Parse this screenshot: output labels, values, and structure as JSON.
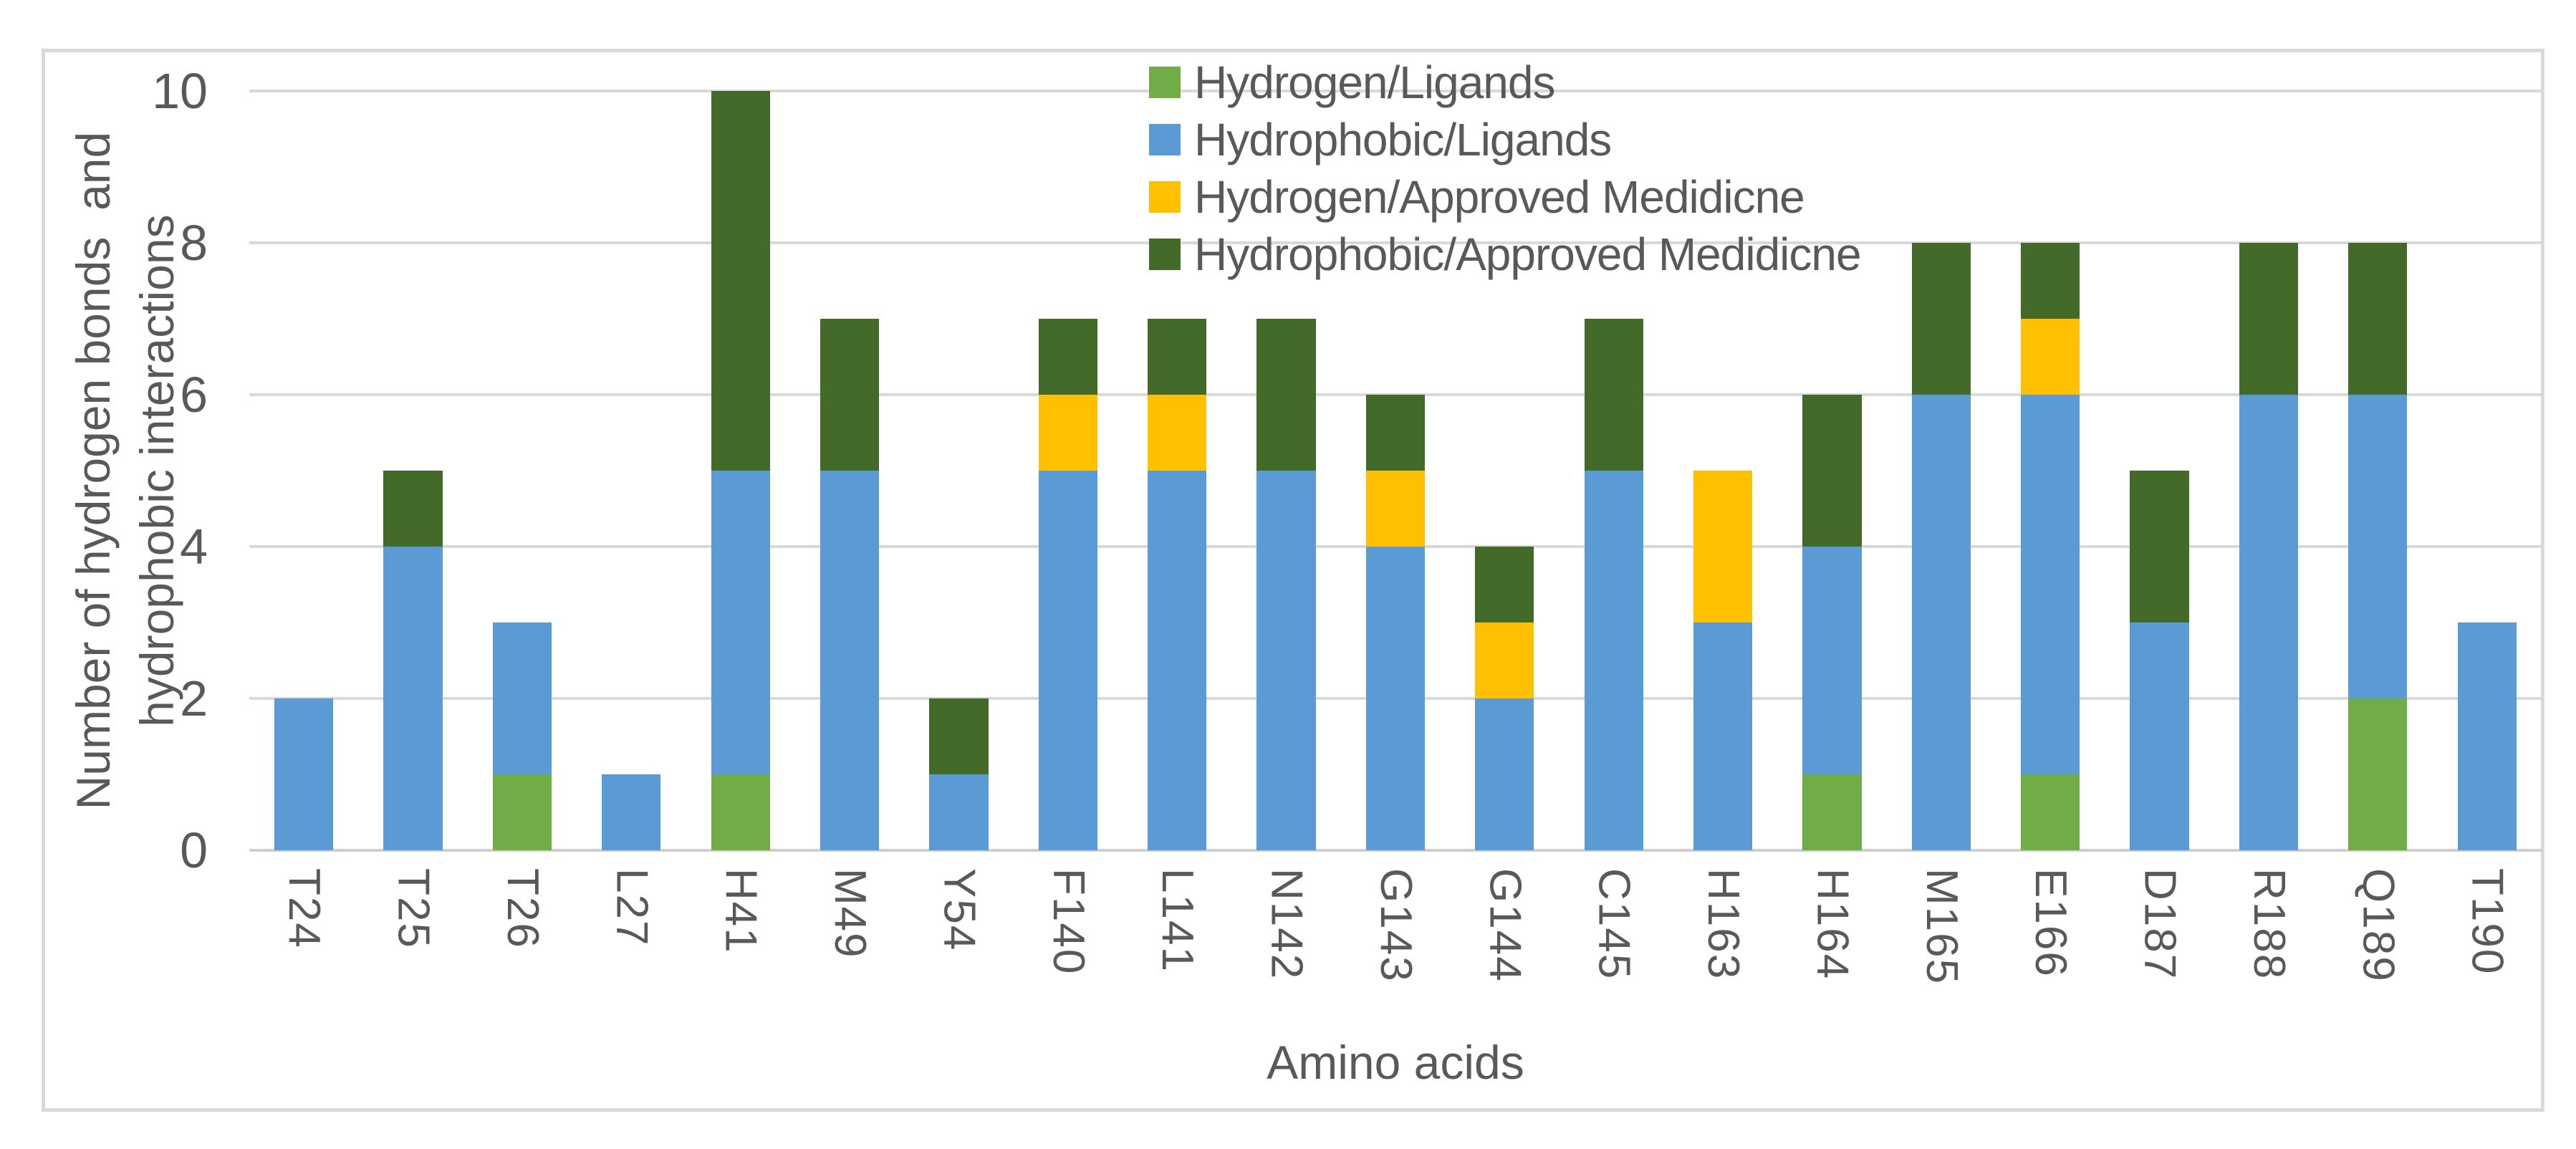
{
  "chart_data": {
    "type": "bar",
    "stacked": true,
    "title": "",
    "xlabel": "Amino acids",
    "ylabel_line1": "Number of hydrogen bonds  and",
    "ylabel_line2": "hydrophobic interactions",
    "ylim": [
      0,
      10
    ],
    "yticks": [
      0,
      2,
      4,
      6,
      8,
      10
    ],
    "grid": true,
    "legend_position": "top-center-overlay",
    "gridline_color": "#D9D9D9",
    "text_color": "#595959",
    "frame_color": "#D9D9D9",
    "categories": [
      "T24",
      "T25",
      "T26",
      "L27",
      "H41",
      "M49",
      "Y54",
      "F140",
      "L141",
      "N142",
      "G143",
      "G144",
      "C145",
      "H163",
      "H164",
      "M165",
      "E166",
      "D187",
      "R188",
      "Q189",
      "T190"
    ],
    "series": [
      {
        "name": "Hydrogen/Ligands",
        "color": "#70AD47",
        "values": [
          0,
          0,
          1,
          0,
          1,
          0,
          0,
          0,
          0,
          0,
          0,
          0,
          0,
          0,
          1,
          0,
          1,
          0,
          0,
          2,
          0
        ]
      },
      {
        "name": "Hydrophobic/Ligands",
        "color": "#5B9BD5",
        "values": [
          2,
          4,
          2,
          1,
          4,
          5,
          1,
          5,
          5,
          5,
          4,
          2,
          5,
          3,
          3,
          6,
          5,
          3,
          6,
          4,
          3
        ]
      },
      {
        "name": "Hydrogen/Approved Medidicne",
        "color": "#FFC000",
        "values": [
          0,
          0,
          0,
          0,
          0,
          0,
          0,
          1,
          1,
          0,
          1,
          1,
          0,
          2,
          0,
          0,
          1,
          0,
          0,
          0,
          0
        ]
      },
      {
        "name": "Hydrophobic/Approved Medidicne",
        "color": "#446A2A",
        "values": [
          0,
          1,
          0,
          0,
          5,
          2,
          1,
          1,
          1,
          2,
          1,
          1,
          2,
          0,
          2,
          2,
          1,
          2,
          2,
          2,
          0
        ]
      }
    ],
    "totals": [
      2,
      5,
      3,
      1,
      10,
      7,
      2,
      7,
      7,
      7,
      6,
      4,
      7,
      5,
      6,
      8,
      8,
      5,
      8,
      8,
      3
    ]
  }
}
